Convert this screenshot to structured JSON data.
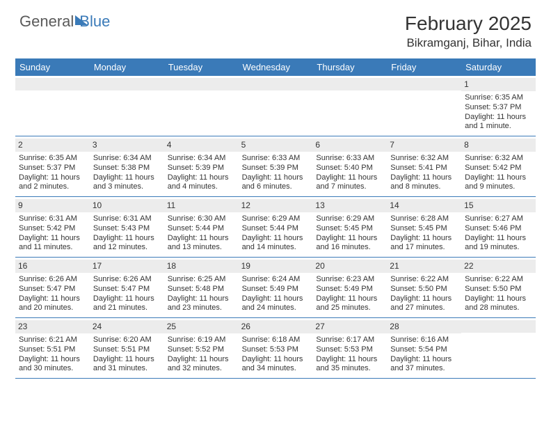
{
  "logo": {
    "part1": "General",
    "part2": "Blue"
  },
  "title": "February 2025",
  "location": "Bikramganj, Bihar, India",
  "day_headers": [
    "Sunday",
    "Monday",
    "Tuesday",
    "Wednesday",
    "Thursday",
    "Friday",
    "Saturday"
  ],
  "colors": {
    "header_bg": "#3a7ab8",
    "header_text": "#ffffff",
    "daynum_bg": "#ececec",
    "border": "#3a7ab8",
    "logo_gray": "#5a5a5a"
  },
  "weeks": [
    [
      {
        "n": "",
        "sr": "",
        "ss": "",
        "dl": ""
      },
      {
        "n": "",
        "sr": "",
        "ss": "",
        "dl": ""
      },
      {
        "n": "",
        "sr": "",
        "ss": "",
        "dl": ""
      },
      {
        "n": "",
        "sr": "",
        "ss": "",
        "dl": ""
      },
      {
        "n": "",
        "sr": "",
        "ss": "",
        "dl": ""
      },
      {
        "n": "",
        "sr": "",
        "ss": "",
        "dl": ""
      },
      {
        "n": "1",
        "sr": "Sunrise: 6:35 AM",
        "ss": "Sunset: 5:37 PM",
        "dl": "Daylight: 11 hours and 1 minute."
      }
    ],
    [
      {
        "n": "2",
        "sr": "Sunrise: 6:35 AM",
        "ss": "Sunset: 5:37 PM",
        "dl": "Daylight: 11 hours and 2 minutes."
      },
      {
        "n": "3",
        "sr": "Sunrise: 6:34 AM",
        "ss": "Sunset: 5:38 PM",
        "dl": "Daylight: 11 hours and 3 minutes."
      },
      {
        "n": "4",
        "sr": "Sunrise: 6:34 AM",
        "ss": "Sunset: 5:39 PM",
        "dl": "Daylight: 11 hours and 4 minutes."
      },
      {
        "n": "5",
        "sr": "Sunrise: 6:33 AM",
        "ss": "Sunset: 5:39 PM",
        "dl": "Daylight: 11 hours and 6 minutes."
      },
      {
        "n": "6",
        "sr": "Sunrise: 6:33 AM",
        "ss": "Sunset: 5:40 PM",
        "dl": "Daylight: 11 hours and 7 minutes."
      },
      {
        "n": "7",
        "sr": "Sunrise: 6:32 AM",
        "ss": "Sunset: 5:41 PM",
        "dl": "Daylight: 11 hours and 8 minutes."
      },
      {
        "n": "8",
        "sr": "Sunrise: 6:32 AM",
        "ss": "Sunset: 5:42 PM",
        "dl": "Daylight: 11 hours and 9 minutes."
      }
    ],
    [
      {
        "n": "9",
        "sr": "Sunrise: 6:31 AM",
        "ss": "Sunset: 5:42 PM",
        "dl": "Daylight: 11 hours and 11 minutes."
      },
      {
        "n": "10",
        "sr": "Sunrise: 6:31 AM",
        "ss": "Sunset: 5:43 PM",
        "dl": "Daylight: 11 hours and 12 minutes."
      },
      {
        "n": "11",
        "sr": "Sunrise: 6:30 AM",
        "ss": "Sunset: 5:44 PM",
        "dl": "Daylight: 11 hours and 13 minutes."
      },
      {
        "n": "12",
        "sr": "Sunrise: 6:29 AM",
        "ss": "Sunset: 5:44 PM",
        "dl": "Daylight: 11 hours and 14 minutes."
      },
      {
        "n": "13",
        "sr": "Sunrise: 6:29 AM",
        "ss": "Sunset: 5:45 PM",
        "dl": "Daylight: 11 hours and 16 minutes."
      },
      {
        "n": "14",
        "sr": "Sunrise: 6:28 AM",
        "ss": "Sunset: 5:45 PM",
        "dl": "Daylight: 11 hours and 17 minutes."
      },
      {
        "n": "15",
        "sr": "Sunrise: 6:27 AM",
        "ss": "Sunset: 5:46 PM",
        "dl": "Daylight: 11 hours and 19 minutes."
      }
    ],
    [
      {
        "n": "16",
        "sr": "Sunrise: 6:26 AM",
        "ss": "Sunset: 5:47 PM",
        "dl": "Daylight: 11 hours and 20 minutes."
      },
      {
        "n": "17",
        "sr": "Sunrise: 6:26 AM",
        "ss": "Sunset: 5:47 PM",
        "dl": "Daylight: 11 hours and 21 minutes."
      },
      {
        "n": "18",
        "sr": "Sunrise: 6:25 AM",
        "ss": "Sunset: 5:48 PM",
        "dl": "Daylight: 11 hours and 23 minutes."
      },
      {
        "n": "19",
        "sr": "Sunrise: 6:24 AM",
        "ss": "Sunset: 5:49 PM",
        "dl": "Daylight: 11 hours and 24 minutes."
      },
      {
        "n": "20",
        "sr": "Sunrise: 6:23 AM",
        "ss": "Sunset: 5:49 PM",
        "dl": "Daylight: 11 hours and 25 minutes."
      },
      {
        "n": "21",
        "sr": "Sunrise: 6:22 AM",
        "ss": "Sunset: 5:50 PM",
        "dl": "Daylight: 11 hours and 27 minutes."
      },
      {
        "n": "22",
        "sr": "Sunrise: 6:22 AM",
        "ss": "Sunset: 5:50 PM",
        "dl": "Daylight: 11 hours and 28 minutes."
      }
    ],
    [
      {
        "n": "23",
        "sr": "Sunrise: 6:21 AM",
        "ss": "Sunset: 5:51 PM",
        "dl": "Daylight: 11 hours and 30 minutes."
      },
      {
        "n": "24",
        "sr": "Sunrise: 6:20 AM",
        "ss": "Sunset: 5:51 PM",
        "dl": "Daylight: 11 hours and 31 minutes."
      },
      {
        "n": "25",
        "sr": "Sunrise: 6:19 AM",
        "ss": "Sunset: 5:52 PM",
        "dl": "Daylight: 11 hours and 32 minutes."
      },
      {
        "n": "26",
        "sr": "Sunrise: 6:18 AM",
        "ss": "Sunset: 5:53 PM",
        "dl": "Daylight: 11 hours and 34 minutes."
      },
      {
        "n": "27",
        "sr": "Sunrise: 6:17 AM",
        "ss": "Sunset: 5:53 PM",
        "dl": "Daylight: 11 hours and 35 minutes."
      },
      {
        "n": "28",
        "sr": "Sunrise: 6:16 AM",
        "ss": "Sunset: 5:54 PM",
        "dl": "Daylight: 11 hours and 37 minutes."
      },
      {
        "n": "",
        "sr": "",
        "ss": "",
        "dl": ""
      }
    ]
  ]
}
